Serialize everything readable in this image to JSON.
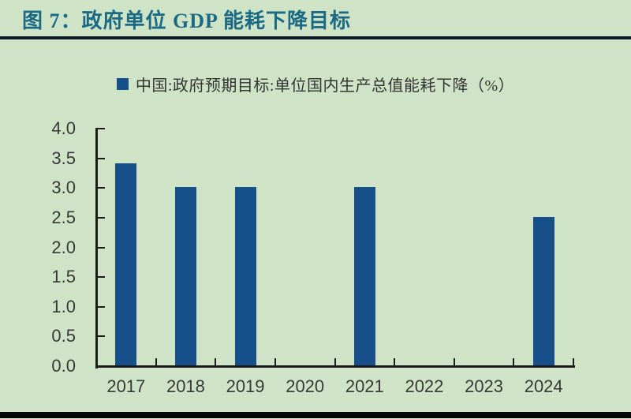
{
  "figure": {
    "title": "图 7：政府单位 GDP 能耗下降目标",
    "legend_label": "中国:政府预期目标:单位国内生产总值能耗下降（%）"
  },
  "colors": {
    "background": "#cfe4c6",
    "bar": "#164f8a",
    "title_text": "#1a6a86",
    "axis": "#1c1c1c",
    "tick_label": "#383838",
    "divider": "#0f1c26",
    "bottom_bar": "#060606"
  },
  "chart_data": {
    "type": "bar",
    "title": "图 7：政府单位 GDP 能耗下降目标",
    "legend": [
      "中国:政府预期目标:单位国内生产总值能耗下降（%）"
    ],
    "legend_position": "top-center",
    "categories": [
      "2017",
      "2018",
      "2019",
      "2020",
      "2021",
      "2022",
      "2023",
      "2024"
    ],
    "values": [
      3.4,
      3.0,
      3.0,
      null,
      3.0,
      null,
      null,
      2.5
    ],
    "xlabel": "",
    "ylabel": "",
    "ylim": [
      0.0,
      4.0
    ],
    "ytick_step": 0.5,
    "ytick_labels": [
      "0.0",
      "0.5",
      "1.0",
      "1.5",
      "2.0",
      "2.5",
      "3.0",
      "3.5",
      "4.0"
    ],
    "grid": false,
    "unit": "%"
  }
}
